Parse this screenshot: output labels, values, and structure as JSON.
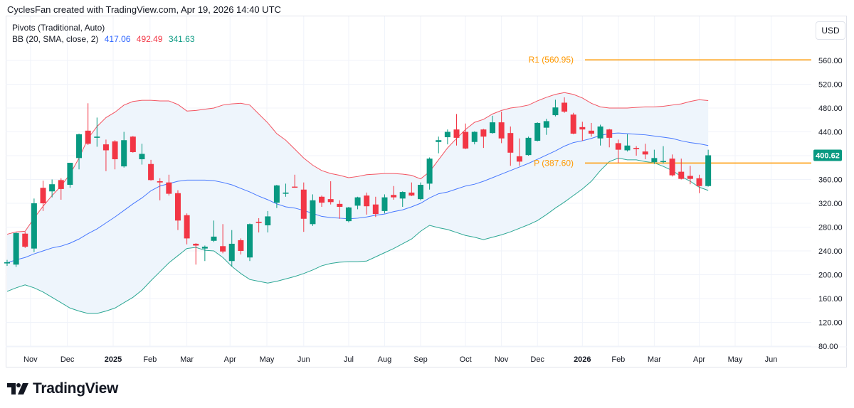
{
  "header": {
    "credit": "CyclesFan created with TradingView.com, Apr 19, 2026 14:40 UTC"
  },
  "legend": {
    "pivots": "Pivots (Traditional, Auto)",
    "bb_label": "BB (20, SMA, close, 2)",
    "bb_basis": "417.06",
    "bb_upper": "492.49",
    "bb_lower": "341.63"
  },
  "currency_button": "USD",
  "logo": {
    "text": "TradingView"
  },
  "colors": {
    "up": "#089981",
    "down": "#f23645",
    "basis": "#2962ff",
    "upper": "#f23645",
    "lower": "#089981",
    "pivot": "#ff9800",
    "band_fill": "#eef5fc"
  },
  "chart_data": {
    "type": "candlestick",
    "interval": "weekly",
    "ylim": [
      60,
      600
    ],
    "grid": true,
    "y_ticks": [
      "560.00",
      "520.00",
      "480.00",
      "440.00",
      "360.00",
      "320.00",
      "280.00",
      "240.00",
      "200.00",
      "160.00",
      "120.00",
      "80.00"
    ],
    "y_tick_values": [
      560,
      520,
      480,
      440,
      360,
      320,
      280,
      240,
      200,
      160,
      120,
      80
    ],
    "x_ticks": [
      {
        "label": "Nov",
        "bold": false
      },
      {
        "label": "Dec",
        "bold": false
      },
      {
        "label": "2025",
        "bold": true
      },
      {
        "label": "Feb",
        "bold": false
      },
      {
        "label": "Mar",
        "bold": false
      },
      {
        "label": "Apr",
        "bold": false
      },
      {
        "label": "May",
        "bold": false
      },
      {
        "label": "Jun",
        "bold": false
      },
      {
        "label": "Jul",
        "bold": false
      },
      {
        "label": "Aug",
        "bold": false
      },
      {
        "label": "Sep",
        "bold": false
      },
      {
        "label": "Oct",
        "bold": false
      },
      {
        "label": "Nov",
        "bold": false
      },
      {
        "label": "Dec",
        "bold": false
      },
      {
        "label": "2026",
        "bold": true
      },
      {
        "label": "Feb",
        "bold": false
      },
      {
        "label": "Mar",
        "bold": false
      },
      {
        "label": "Apr",
        "bold": false
      },
      {
        "label": "May",
        "bold": false
      },
      {
        "label": "Jun",
        "bold": false
      }
    ],
    "x_tick_weeks": [
      2.6,
      6.7,
      11.8,
      15.9,
      20,
      24.8,
      28.9,
      33,
      38,
      42,
      46,
      51,
      55,
      59,
      64,
      68,
      72,
      77,
      81,
      85
    ],
    "last_price": "400.62",
    "pivots": [
      {
        "label": "R1 (560.95)",
        "value": 560.95
      },
      {
        "label": "P (387.60)",
        "value": 387.6
      }
    ],
    "ohlc": [
      [
        219,
        225,
        215,
        221
      ],
      [
        217,
        271,
        213,
        270
      ],
      [
        269,
        272,
        245,
        247
      ],
      [
        244,
        328,
        238,
        320
      ],
      [
        346,
        358,
        307,
        320
      ],
      [
        340,
        360,
        330,
        352
      ],
      [
        359,
        362,
        326,
        344
      ],
      [
        351,
        388,
        346,
        388
      ],
      [
        396,
        437,
        377,
        436
      ],
      [
        442,
        488,
        418,
        420
      ],
      [
        430,
        464,
        415,
        432
      ],
      [
        419,
        427,
        374,
        409
      ],
      [
        424,
        426,
        377,
        394
      ],
      [
        382,
        440,
        380,
        426
      ],
      [
        432,
        433,
        405,
        406
      ],
      [
        394,
        420,
        385,
        403
      ],
      [
        386,
        393,
        358,
        359
      ],
      [
        357,
        362,
        325,
        355
      ],
      [
        355,
        368,
        333,
        336
      ],
      [
        337,
        342,
        275,
        291
      ],
      [
        300,
        303,
        251,
        261
      ],
      [
        252,
        253,
        217,
        249
      ],
      [
        244,
        249,
        223,
        247
      ],
      [
        257,
        291,
        255,
        264
      ],
      [
        248,
        285,
        236,
        239
      ],
      [
        223,
        275,
        214,
        252
      ],
      [
        258,
        261,
        234,
        240
      ],
      [
        229,
        286,
        223,
        285
      ],
      [
        289,
        295,
        271,
        287
      ],
      [
        283,
        307,
        271,
        298
      ],
      [
        321,
        351,
        312,
        350
      ],
      [
        336,
        353,
        331,
        338
      ],
      [
        348,
        368,
        346,
        347
      ],
      [
        343,
        355,
        272,
        294
      ],
      [
        285,
        335,
        282,
        325
      ],
      [
        331,
        333,
        314,
        321
      ],
      [
        327,
        357,
        318,
        322
      ],
      [
        319,
        325,
        294,
        314
      ],
      [
        290,
        314,
        288,
        313
      ],
      [
        316,
        331,
        310,
        330
      ],
      [
        333,
        338,
        301,
        315
      ],
      [
        318,
        331,
        297,
        302
      ],
      [
        307,
        335,
        303,
        330
      ],
      [
        334,
        349,
        326,
        330
      ],
      [
        328,
        340,
        314,
        339
      ],
      [
        338,
        355,
        332,
        333
      ],
      [
        327,
        355,
        325,
        351
      ],
      [
        353,
        397,
        343,
        395
      ],
      [
        423,
        432,
        404,
        426
      ],
      [
        431,
        444,
        419,
        440
      ],
      [
        444,
        470,
        417,
        430
      ],
      [
        440,
        454,
        411,
        412
      ],
      [
        423,
        441,
        419,
        440
      ],
      [
        444,
        445,
        413,
        432
      ],
      [
        438,
        467,
        437,
        456
      ],
      [
        456,
        474,
        421,
        429
      ],
      [
        438,
        449,
        383,
        405
      ],
      [
        399,
        429,
        383,
        390
      ],
      [
        401,
        432,
        400,
        430
      ],
      [
        425,
        456,
        424,
        455
      ],
      [
        447,
        462,
        435,
        458
      ],
      [
        468,
        494,
        466,
        481
      ],
      [
        489,
        498,
        472,
        474
      ],
      [
        469,
        472,
        436,
        437
      ],
      [
        448,
        457,
        425,
        444
      ],
      [
        442,
        455,
        432,
        437
      ],
      [
        429,
        452,
        417,
        449
      ],
      [
        444,
        445,
        414,
        430
      ],
      [
        421,
        427,
        388,
        410
      ],
      [
        409,
        436,
        407,
        417
      ],
      [
        413,
        416,
        400,
        411
      ],
      [
        407,
        420,
        394,
        402
      ],
      [
        389,
        410,
        386,
        396
      ],
      [
        390,
        416,
        387,
        391
      ],
      [
        395,
        402,
        365,
        367
      ],
      [
        373,
        395,
        360,
        361
      ],
      [
        366,
        383,
        352,
        361
      ],
      [
        362,
        368,
        337,
        349
      ],
      [
        349,
        410,
        348,
        400.62
      ]
    ],
    "bb_upper": [
      268,
      272,
      273,
      295,
      315,
      333,
      349,
      369,
      396,
      429,
      449,
      464,
      473,
      485,
      491,
      493,
      493,
      492,
      492,
      486,
      475,
      476,
      478,
      480,
      485,
      487,
      488,
      485,
      470,
      455,
      437,
      426,
      411,
      396,
      384,
      375,
      370,
      367,
      363,
      365,
      368,
      369,
      370,
      370,
      369,
      367,
      361,
      373,
      393,
      413,
      429,
      444,
      456,
      461,
      470,
      476,
      480,
      482,
      485,
      492,
      498,
      503,
      506,
      503,
      497,
      488,
      482,
      480,
      480,
      480,
      481,
      482,
      482,
      483,
      485,
      487,
      491,
      494,
      492.49
    ],
    "bb_basis": [
      220,
      225,
      229,
      235,
      240,
      245,
      248,
      253,
      260,
      269,
      277,
      287,
      297,
      308,
      319,
      329,
      341,
      349,
      353,
      357,
      359,
      359,
      359,
      358,
      355,
      351,
      345,
      339,
      332,
      326,
      319,
      314,
      312,
      308,
      303,
      298,
      296,
      295,
      294,
      295,
      297,
      300,
      302,
      306,
      309,
      314,
      320,
      329,
      336,
      339,
      344,
      349,
      352,
      357,
      363,
      369,
      375,
      381,
      387,
      394,
      401,
      408,
      416,
      422,
      425,
      429,
      434,
      437,
      438,
      437,
      436,
      435,
      433,
      431,
      429,
      425,
      422,
      420,
      417.06
    ],
    "bb_lower": [
      172,
      178,
      183,
      178,
      171,
      162,
      153,
      144,
      139,
      135,
      135,
      139,
      144,
      153,
      162,
      174,
      190,
      205,
      220,
      232,
      244,
      246,
      241,
      240,
      229,
      214,
      202,
      192,
      189,
      186,
      189,
      193,
      197,
      202,
      208,
      215,
      219,
      221,
      222,
      222,
      223,
      230,
      237,
      244,
      252,
      260,
      273,
      283,
      279,
      276,
      271,
      266,
      263,
      259,
      263,
      267,
      272,
      278,
      284,
      291,
      301,
      312,
      322,
      333,
      344,
      357,
      375,
      390,
      396,
      393,
      393,
      390,
      388,
      382,
      375,
      365,
      357,
      347,
      341.63
    ]
  }
}
